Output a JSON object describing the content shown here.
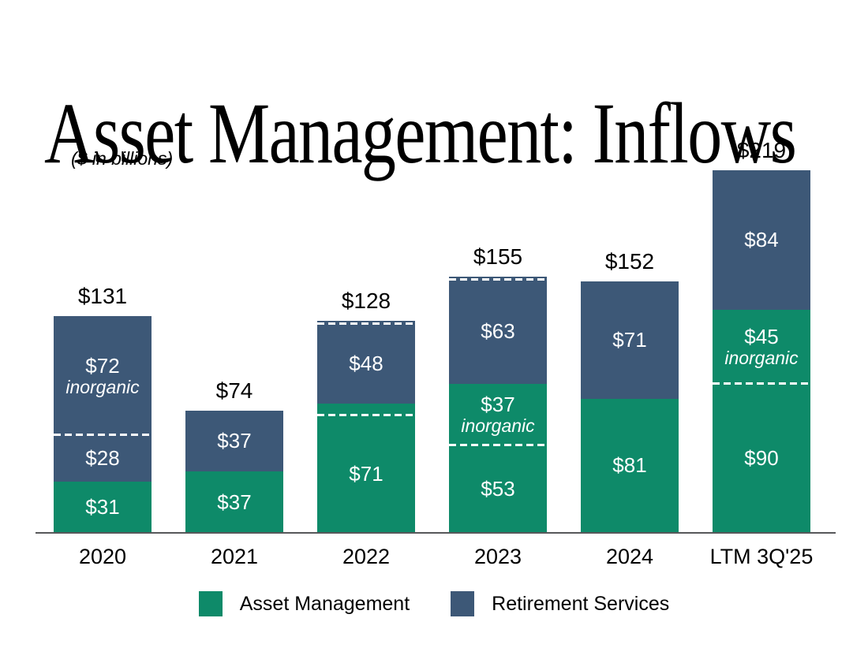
{
  "page": {
    "background": "#ffffff"
  },
  "chart_data": {
    "type": "bar",
    "stacked": true,
    "title": "Asset Management: Inflows",
    "subtitle": "($ in billions)",
    "value_unit": "$ billions",
    "categories": [
      "2020",
      "2021",
      "2022",
      "2023",
      "2024",
      "LTM 3Q'25"
    ],
    "series": [
      {
        "name": "Asset Management",
        "color": "#0E8A69",
        "values": [
          31,
          37,
          78,
          90,
          81,
          135
        ]
      },
      {
        "name": "Retirement Services",
        "color": "#3D5877",
        "values": [
          100,
          37,
          50,
          65,
          71,
          84
        ]
      }
    ],
    "totals": [
      131,
      74,
      128,
      155,
      152,
      219
    ],
    "total_labels": [
      "$131",
      "$74",
      "$128",
      "$155",
      "$152",
      "$219"
    ],
    "legend_position": "bottom-center",
    "grid": false,
    "axis_baseline_color": "#57585a",
    "bars": [
      {
        "category": "2020",
        "total_label": "$131",
        "segments": [
          {
            "series": "Asset Management",
            "value": 31,
            "label": "$31"
          },
          {
            "series": "Retirement Services",
            "value": 28,
            "label": "$28",
            "dashed_top": true
          },
          {
            "series": "Retirement Services",
            "value": 72,
            "label": "$72",
            "sublabel": "inorganic"
          }
        ]
      },
      {
        "category": "2021",
        "total_label": "$74",
        "segments": [
          {
            "series": "Asset Management",
            "value": 37,
            "label": "$37"
          },
          {
            "series": "Retirement Services",
            "value": 37,
            "label": "$37"
          }
        ]
      },
      {
        "category": "2022",
        "total_label": "$128",
        "segments": [
          {
            "series": "Asset Management",
            "value": 71,
            "label": "$71",
            "dashed_top": true
          },
          {
            "series": "Asset Management",
            "value": 7,
            "label": "",
            "estimated": true
          },
          {
            "series": "Retirement Services",
            "value": 48,
            "label": "$48",
            "dashed_top": true
          },
          {
            "series": "Retirement Services",
            "value": 2,
            "label": "",
            "estimated": true
          }
        ]
      },
      {
        "category": "2023",
        "total_label": "$155",
        "segments": [
          {
            "series": "Asset Management",
            "value": 53,
            "label": "$53",
            "dashed_top": true
          },
          {
            "series": "Asset Management",
            "value": 37,
            "label": "$37",
            "sublabel": "inorganic"
          },
          {
            "series": "Retirement Services",
            "value": 63,
            "label": "$63",
            "dashed_top": true
          },
          {
            "series": "Retirement Services",
            "value": 2,
            "label": "",
            "estimated": true
          }
        ]
      },
      {
        "category": "2024",
        "total_label": "$152",
        "segments": [
          {
            "series": "Asset Management",
            "value": 81,
            "label": "$81"
          },
          {
            "series": "Retirement Services",
            "value": 71,
            "label": "$71"
          }
        ]
      },
      {
        "category": "LTM 3Q'25",
        "total_label": "$219",
        "segments": [
          {
            "series": "Asset Management",
            "value": 90,
            "label": "$90",
            "dashed_top": true
          },
          {
            "series": "Asset Management",
            "value": 45,
            "label": "$45",
            "sublabel": "inorganic"
          },
          {
            "series": "Retirement Services",
            "value": 84,
            "label": "$84"
          }
        ]
      }
    ],
    "legend": [
      {
        "label": "Asset Management",
        "color": "#0E8A69"
      },
      {
        "label": "Retirement Services",
        "color": "#3D5877"
      }
    ]
  }
}
